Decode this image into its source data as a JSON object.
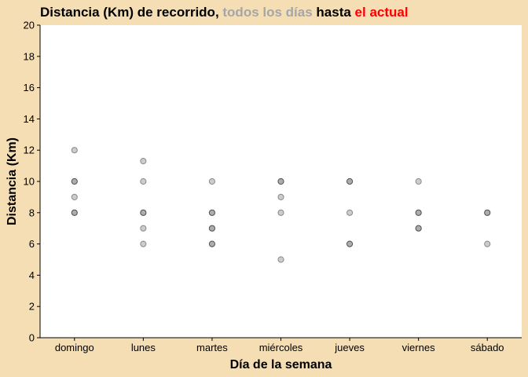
{
  "chart_data": {
    "type": "scatter",
    "title": {
      "part1": "Distancia (Km) de recorrido, ",
      "part2": "todos los días",
      "part3": " hasta ",
      "part4": "el actual",
      "color_part2": "#a6a6a6",
      "color_part4": "#ff0000",
      "color_main": "#000000"
    },
    "xlabel": "Día de la semana",
    "ylabel": "Distancia (Km)",
    "categories": [
      "domingo",
      "lunes",
      "martes",
      "miércoles",
      "jueves",
      "viernes",
      "sábado"
    ],
    "ylim": [
      0,
      20
    ],
    "yticks": [
      "0",
      "2",
      "4",
      "6",
      "8",
      "10",
      "12",
      "14",
      "16",
      "18",
      "20"
    ],
    "grid": false,
    "point_color": "#808080",
    "series": [
      {
        "points": [
          {
            "x": "domingo",
            "y": 12
          },
          {
            "x": "domingo",
            "y": 10
          },
          {
            "x": "domingo",
            "y": 10
          },
          {
            "x": "domingo",
            "y": 9
          },
          {
            "x": "domingo",
            "y": 8
          },
          {
            "x": "domingo",
            "y": 8
          },
          {
            "x": "lunes",
            "y": 11.3
          },
          {
            "x": "lunes",
            "y": 10
          },
          {
            "x": "lunes",
            "y": 8
          },
          {
            "x": "lunes",
            "y": 8
          },
          {
            "x": "lunes",
            "y": 7
          },
          {
            "x": "lunes",
            "y": 6
          },
          {
            "x": "martes",
            "y": 10
          },
          {
            "x": "martes",
            "y": 8
          },
          {
            "x": "martes",
            "y": 8
          },
          {
            "x": "martes",
            "y": 7
          },
          {
            "x": "martes",
            "y": 7
          },
          {
            "x": "martes",
            "y": 6
          },
          {
            "x": "martes",
            "y": 6
          },
          {
            "x": "miércoles",
            "y": 10
          },
          {
            "x": "miércoles",
            "y": 10
          },
          {
            "x": "miércoles",
            "y": 9
          },
          {
            "x": "miércoles",
            "y": 8
          },
          {
            "x": "miércoles",
            "y": 5
          },
          {
            "x": "jueves",
            "y": 10
          },
          {
            "x": "jueves",
            "y": 10
          },
          {
            "x": "jueves",
            "y": 8
          },
          {
            "x": "jueves",
            "y": 6
          },
          {
            "x": "jueves",
            "y": 6
          },
          {
            "x": "viernes",
            "y": 10
          },
          {
            "x": "viernes",
            "y": 8
          },
          {
            "x": "viernes",
            "y": 8
          },
          {
            "x": "viernes",
            "y": 7
          },
          {
            "x": "viernes",
            "y": 7
          },
          {
            "x": "sábado",
            "y": 8
          },
          {
            "x": "sábado",
            "y": 8
          },
          {
            "x": "sábado",
            "y": 6
          }
        ]
      }
    ]
  }
}
